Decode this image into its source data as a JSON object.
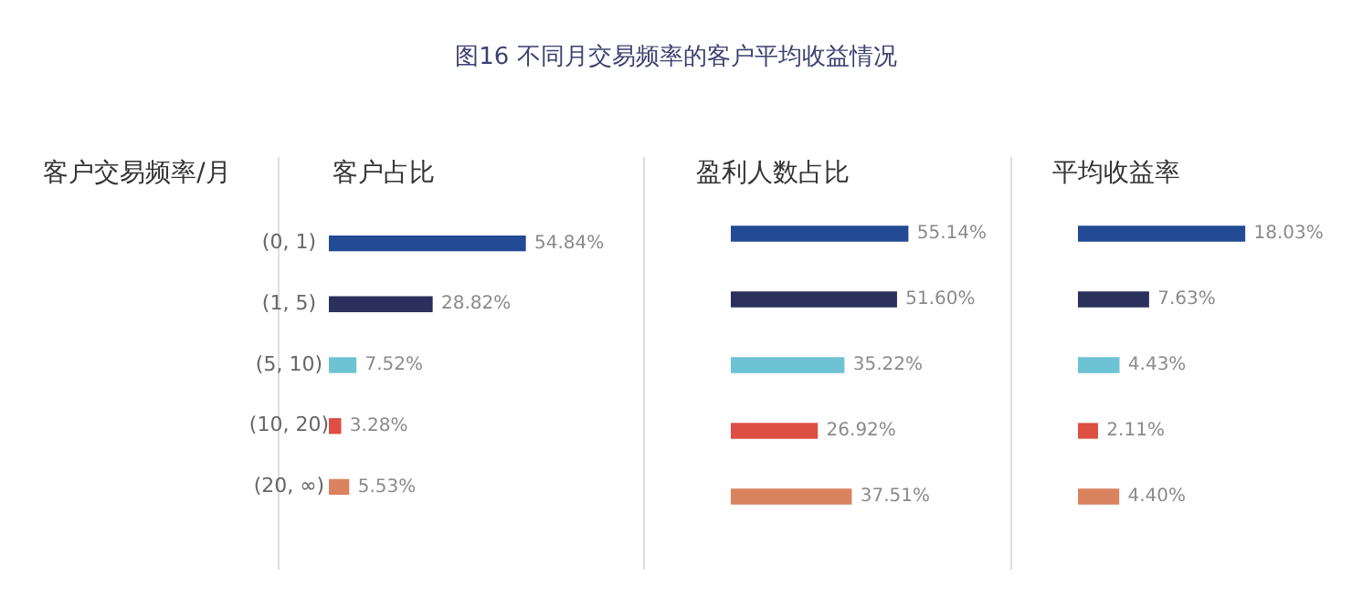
{
  "chart_data": [
    {
      "type": "bar",
      "orientation": "horizontal",
      "title": "客户占比",
      "ylabel": "客户交易频率/月",
      "tick_labels": "y",
      "annotations": [
        "图16   不同月交易频率的客户平均收益情况"
      ],
      "categories": [
        "(0, 1)",
        "(1, 5)",
        "(5, 10)",
        "(10, 20)",
        "(20, ∞)"
      ],
      "values": [
        54.84,
        28.82,
        7.52,
        3.28,
        5.53
      ],
      "value_labels": [
        "54.84%",
        "28.82%",
        "7.52%",
        "3.28%",
        "5.53%"
      ],
      "colors": [
        "#234a94",
        "#2b2f5b",
        "#6dc3d4",
        "#de4f43",
        "#d9835f"
      ]
    },
    {
      "type": "bar",
      "orientation": "horizontal",
      "title": "盈利人数占比",
      "tick_labels": false,
      "categories": [
        null,
        null,
        null,
        null,
        null
      ],
      "values": [
        55.14,
        51.6,
        35.22,
        26.92,
        37.51
      ],
      "value_labels": [
        "55.14%",
        "51.60%",
        "35.22%",
        "26.92%",
        "37.51%"
      ],
      "colors": [
        "#234a94",
        "#2b2f5b",
        "#6dc3d4",
        "#de4f43",
        "#d9835f"
      ]
    },
    {
      "type": "bar",
      "orientation": "horizontal",
      "title": "平均收益率",
      "tick_labels": false,
      "categories": [
        null,
        null,
        null,
        null,
        null
      ],
      "values": [
        18.03,
        7.63,
        4.43,
        2.11,
        4.4
      ],
      "value_labels": [
        "18.03%",
        "7.63%",
        "4.43%",
        "2.11%",
        "4.40%"
      ],
      "colors": [
        "#234a94",
        "#2b2f5b",
        "#6dc3d4",
        "#de4f43",
        "#d9835f"
      ]
    }
  ]
}
